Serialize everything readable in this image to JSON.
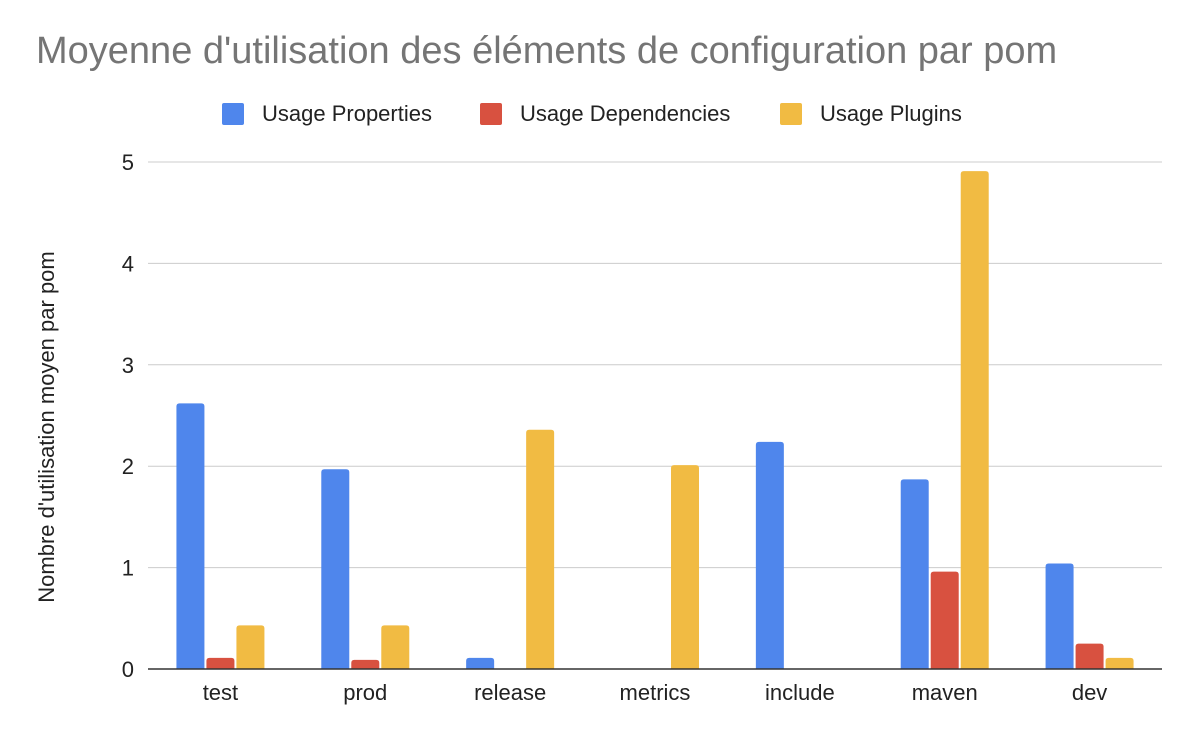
{
  "chart_data": {
    "type": "bar",
    "title": "Moyenne d'utilisation des éléments de configuration par pom",
    "xlabel": "",
    "ylabel": "Nombre d'utilisation moyen par pom",
    "ylim": [
      0,
      5
    ],
    "yticks": [
      "0",
      "1",
      "2",
      "3",
      "4",
      "5"
    ],
    "grid": true,
    "legend_position": "top",
    "categories": [
      "test",
      "prod",
      "release",
      "metrics",
      "include",
      "maven",
      "dev"
    ],
    "series": [
      {
        "name": "Usage Properties",
        "color": "#4f86ec",
        "values": [
          2.62,
          1.97,
          0.11,
          0,
          2.24,
          1.87,
          1.04
        ]
      },
      {
        "name": "Usage Dependencies",
        "color": "#d85140",
        "values": [
          0.11,
          0.09,
          0,
          0,
          0,
          0.96,
          0.25
        ]
      },
      {
        "name": "Usage Plugins",
        "color": "#f1bb43",
        "values": [
          0.43,
          0.43,
          2.36,
          2.01,
          0,
          4.91,
          0.11
        ]
      }
    ]
  }
}
